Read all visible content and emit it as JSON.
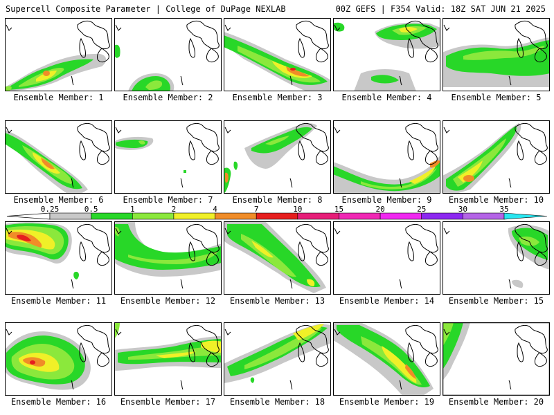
{
  "header": {
    "left_title": "Supercell Composite Parameter | College of DuPage NEXLAB",
    "right_title": "00Z GEFS | F354 Valid: 18Z SAT JUN 21 2025"
  },
  "member_label_prefix": "Ensemble Member: ",
  "members": [
    {
      "label": "Ensemble Member: 1"
    },
    {
      "label": "Ensemble Member: 2"
    },
    {
      "label": "Ensemble Member: 3"
    },
    {
      "label": "Ensemble Member: 4"
    },
    {
      "label": "Ensemble Member: 5"
    },
    {
      "label": "Ensemble Member: 6"
    },
    {
      "label": "Ensemble Member: 7"
    },
    {
      "label": "Ensemble Member: 8"
    },
    {
      "label": "Ensemble Member: 9"
    },
    {
      "label": "Ensemble Member: 10"
    },
    {
      "label": "Ensemble Member: 11"
    },
    {
      "label": "Ensemble Member: 12"
    },
    {
      "label": "Ensemble Member: 13"
    },
    {
      "label": "Ensemble Member: 14"
    },
    {
      "label": "Ensemble Member: 15"
    },
    {
      "label": "Ensemble Member: 16"
    },
    {
      "label": "Ensemble Member: 17"
    },
    {
      "label": "Ensemble Member: 18"
    },
    {
      "label": "Ensemble Member: 19"
    },
    {
      "label": "Ensemble Member: 20"
    }
  ],
  "colorbar": {
    "levels": [
      "0.25",
      "0.5",
      "1",
      "2",
      "4",
      "7",
      "10",
      "15",
      "20",
      "25",
      "30",
      "35"
    ],
    "colors": [
      "#c8c8c8",
      "#28d728",
      "#8be83c",
      "#f0f028",
      "#f08c28",
      "#e61e1e",
      "#e61e78",
      "#f028b4",
      "#f028f0",
      "#8c28f0",
      "#b464e6",
      "#28e6f0"
    ]
  },
  "shading_colors": {
    "gray": "#c8c8c8",
    "green": "#28d728",
    "lightgreen": "#8be83c",
    "yellow": "#f0f028",
    "orange": "#f08c28",
    "red": "#e61e1e"
  }
}
